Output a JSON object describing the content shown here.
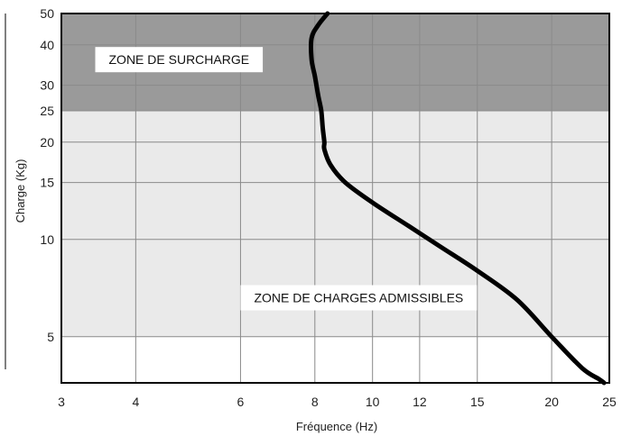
{
  "chart_data": {
    "type": "line",
    "xlabel": "Fréquence (Hz)",
    "ylabel": "Charge (Kg)",
    "x_scale": "log",
    "y_scale": "log",
    "xlim": [
      3,
      25
    ],
    "ylim": [
      3.6,
      50
    ],
    "x_ticks": [
      3,
      4,
      6,
      8,
      10,
      12,
      15,
      20,
      25
    ],
    "x_tick_labels": [
      "3",
      "4",
      "6",
      "8",
      "10",
      "12",
      "15",
      "20",
      "25"
    ],
    "y_ticks": [
      5,
      10,
      15,
      20,
      25,
      30,
      40,
      50
    ],
    "y_tick_labels": [
      "5",
      "10",
      "15",
      "20",
      "25",
      "30",
      "40",
      "50"
    ],
    "grid": true,
    "zones": [
      {
        "label": "ZONE DE SURCHARGE",
        "y_range": [
          25,
          50
        ],
        "color": "#9a9a9a"
      },
      {
        "label": "ZONE DE CHARGES ADMISSIBLES",
        "y_range": [
          5,
          25
        ],
        "color": "#eaeaea"
      }
    ],
    "series": [
      {
        "color": "#000000",
        "x": [
          8.4,
          8.1,
          7.9,
          7.9,
          8.0,
          8.1,
          8.2,
          8.25,
          8.3,
          8.3,
          8.5,
          9.0,
          10.0,
          11.5,
          13.0,
          15.0,
          17.5,
          20.0,
          22.5,
          24.0,
          24.5
        ],
        "y": [
          50,
          46,
          42,
          36,
          32,
          28,
          25,
          22,
          20,
          19,
          17,
          15,
          13,
          11,
          9.5,
          8,
          6.5,
          5,
          4,
          3.7,
          3.6
        ]
      }
    ]
  }
}
